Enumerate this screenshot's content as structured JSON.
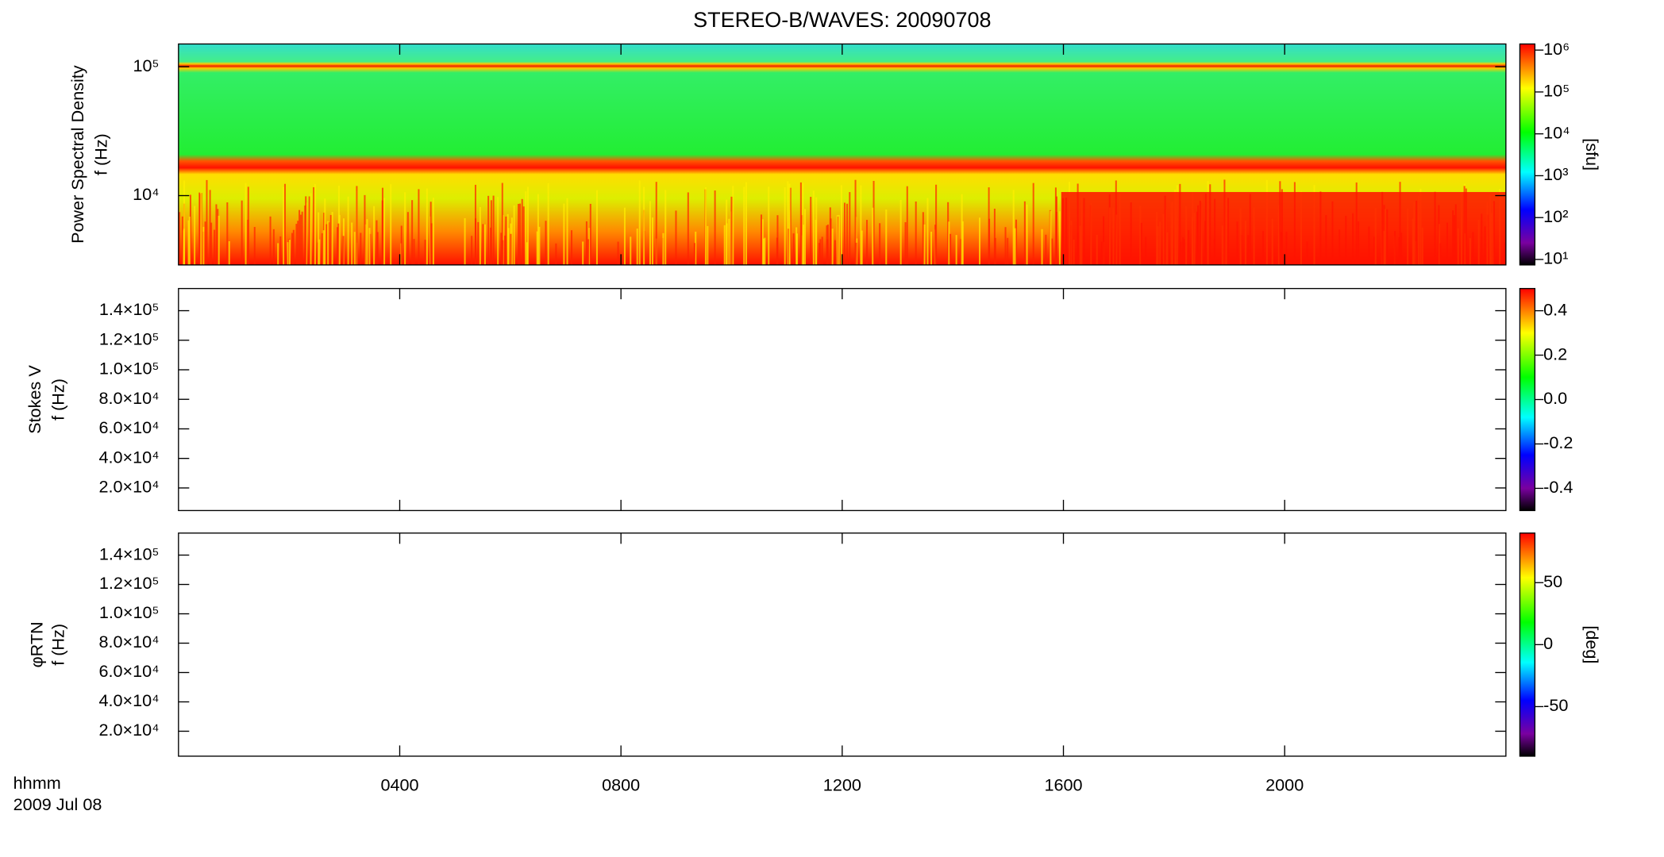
{
  "chart_data": [
    {
      "type": "spectrogram",
      "title": "STEREO-B/WAVES: 20090708",
      "ylabel": [
        "Power Spectral Density",
        "f (Hz)"
      ],
      "ylog": true,
      "ylim": [
        2900,
        150000
      ],
      "yticks": [
        {
          "value": 10000,
          "label": "10⁴"
        },
        {
          "value": 100000,
          "label": "10⁵"
        }
      ],
      "colorbar": {
        "log": true,
        "clim": [
          7.4,
          1400000
        ],
        "label": "[sfu]",
        "ticks": [
          {
            "value": 10,
            "label": "10¹"
          },
          {
            "value": 100,
            "label": "10²"
          },
          {
            "value": 1000,
            "label": "10³"
          },
          {
            "value": 10000,
            "label": "10⁴"
          },
          {
            "value": 100000,
            "label": "10⁵"
          },
          {
            "value": 1000000,
            "label": "10⁶"
          }
        ]
      }
    },
    {
      "type": "spectrogram",
      "ylabel": [
        "Stokes V",
        "f (Hz)"
      ],
      "ylog": false,
      "ylim": [
        4700,
        155000
      ],
      "yticks": [
        {
          "value": 20000,
          "label": "2.0×10⁴"
        },
        {
          "value": 40000,
          "label": "4.0×10⁴"
        },
        {
          "value": 60000,
          "label": "6.0×10⁴"
        },
        {
          "value": 80000,
          "label": "8.0×10⁴"
        },
        {
          "value": 100000,
          "label": "1.0×10⁵"
        },
        {
          "value": 120000,
          "label": "1.2×10⁵"
        },
        {
          "value": 140000,
          "label": "1.4×10⁵"
        }
      ],
      "colorbar": {
        "log": false,
        "clim": [
          -0.5,
          0.5
        ],
        "ticks": [
          {
            "value": -0.4,
            "label": "-0.4"
          },
          {
            "value": -0.2,
            "label": "-0.2"
          },
          {
            "value": 0,
            "label": "0.0"
          },
          {
            "value": 0.2,
            "label": "0.2"
          },
          {
            "value": 0.4,
            "label": "0.4"
          }
        ]
      }
    },
    {
      "type": "spectrogram",
      "ylabel": [
        "φRTN",
        "f (Hz)"
      ],
      "ylog": false,
      "ylim": [
        3000,
        155000
      ],
      "yticks": [
        {
          "value": 20000,
          "label": "2.0×10⁴"
        },
        {
          "value": 40000,
          "label": "4.0×10⁴"
        },
        {
          "value": 60000,
          "label": "6.0×10⁴"
        },
        {
          "value": 80000,
          "label": "8.0×10⁴"
        },
        {
          "value": 100000,
          "label": "1.0×10⁵"
        },
        {
          "value": 120000,
          "label": "1.2×10⁵"
        },
        {
          "value": 140000,
          "label": "1.4×10⁵"
        }
      ],
      "colorbar": {
        "log": false,
        "clim": [
          -90,
          90
        ],
        "label": "[deg]",
        "ticks": [
          -50,
          0,
          50
        ]
      },
      "xlabel": [
        "hhmm",
        "2009 Jul 08"
      ],
      "xlim": [
        0,
        24
      ],
      "xticks": [
        {
          "value": 4,
          "label": "0400"
        },
        {
          "value": 8,
          "label": "0800"
        },
        {
          "value": 12,
          "label": "1200"
        },
        {
          "value": 16,
          "label": "1600"
        },
        {
          "value": 20,
          "label": "2000"
        }
      ]
    }
  ]
}
